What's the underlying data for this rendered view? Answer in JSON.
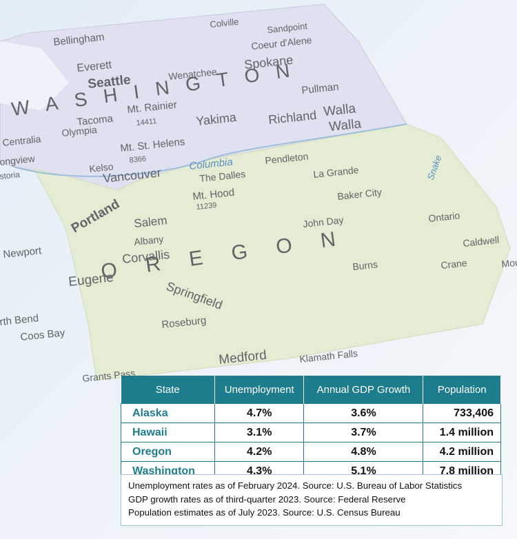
{
  "map": {
    "labels": [
      "Colville",
      "Sandpoint",
      "Bellingham",
      "Coeur d'Alene",
      "Everett",
      "Spokane",
      "Wenatchee",
      "Seattle",
      "WASHINGTON",
      "Pullman",
      "Mt. Rainier",
      "14411",
      "Tacoma",
      "Olympia",
      "Yakima",
      "Richland",
      "Walla",
      "Walla",
      "Centralia",
      "Mt. St. Helens",
      "8366",
      "ongview",
      "Kelso",
      "Vancouver",
      "Columbia",
      "Pendleton",
      "La Grande",
      "Snake",
      "storia",
      "The Dalles",
      "Mt. Hood",
      "11239",
      "Baker City",
      "Portland",
      "Salem",
      "John Day",
      "Ontario",
      "Newport",
      "Albany",
      "Caldwell",
      "Corvallis",
      "OREGON",
      "Burns",
      "Crane",
      "Mou",
      "Eugene",
      "Springfield",
      "Roseburg",
      "rth Bend",
      "Coos Bay",
      "Medford",
      "Klamath Falls",
      "Grants Pass"
    ]
  },
  "table": {
    "headers": [
      "State",
      "Unemployment",
      "Annual GDP Growth",
      "Population"
    ],
    "rows": [
      [
        "Alaska",
        "4.7%",
        "3.6%",
        "733,406"
      ],
      [
        "Hawaii",
        "3.1%",
        "3.7%",
        "1.4 million"
      ],
      [
        "Oregon",
        "4.2%",
        "4.8%",
        "4.2 million"
      ],
      [
        "Washington",
        "4.3%",
        "5.1%",
        "7.8 million"
      ]
    ],
    "notes": [
      "Unemployment rates as of February 2024. Source: U.S. Bureau of Labor Statistics",
      "GDP growth rates as of third-quarter 2023. Source: Federal Reserve",
      "Population estimates as of July 2023. Source: U.S. Census Bureau"
    ]
  }
}
